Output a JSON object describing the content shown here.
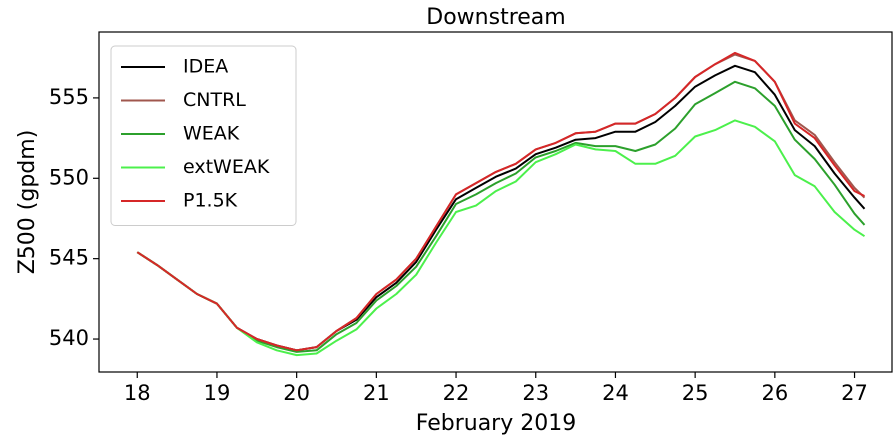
{
  "chart_data": {
    "type": "line",
    "title": "Downstream",
    "xlabel": "February 2019",
    "ylabel": "Z500 (gpdm)",
    "x": [
      18.0,
      18.25,
      18.5,
      18.75,
      19.0,
      19.25,
      19.5,
      19.75,
      20.0,
      20.25,
      20.5,
      20.75,
      21.0,
      21.25,
      21.5,
      21.75,
      22.0,
      22.25,
      22.5,
      22.75,
      23.0,
      23.25,
      23.5,
      23.75,
      24.0,
      24.25,
      24.5,
      24.75,
      25.0,
      25.25,
      25.5,
      25.75,
      26.0,
      26.25,
      26.5,
      26.75,
      27.0,
      27.125
    ],
    "series": [
      {
        "name": "IDEA",
        "color": "#000000",
        "values": [
          545.4,
          544.6,
          543.7,
          542.8,
          542.2,
          540.7,
          540.0,
          539.6,
          539.3,
          539.5,
          540.5,
          541.2,
          542.6,
          543.5,
          544.8,
          546.8,
          548.7,
          549.4,
          550.1,
          550.6,
          551.5,
          551.9,
          552.4,
          552.5,
          552.9,
          552.9,
          553.5,
          554.5,
          555.7,
          556.4,
          557.0,
          556.6,
          555.2,
          553.0,
          552.0,
          550.3,
          548.8,
          548.1
        ]
      },
      {
        "name": "CNTRL",
        "color": "#a0574e",
        "values": [
          545.4,
          544.6,
          543.7,
          542.8,
          542.2,
          540.7,
          540.0,
          539.6,
          539.3,
          539.5,
          540.5,
          541.3,
          542.8,
          543.7,
          545.0,
          547.0,
          549.0,
          549.7,
          550.4,
          550.9,
          551.8,
          552.2,
          552.8,
          552.9,
          553.4,
          553.4,
          554.0,
          555.0,
          556.3,
          557.1,
          557.7,
          557.3,
          556.0,
          553.6,
          552.7,
          551.0,
          549.4,
          548.8
        ]
      },
      {
        "name": "WEAK",
        "color": "#2ca02c",
        "values": [
          545.4,
          544.6,
          543.7,
          542.8,
          542.2,
          540.7,
          539.9,
          539.5,
          539.2,
          539.3,
          540.3,
          541.0,
          542.4,
          543.3,
          544.5,
          546.4,
          548.4,
          549.0,
          549.7,
          550.3,
          551.3,
          551.7,
          552.2,
          552.0,
          552.0,
          551.7,
          552.1,
          553.1,
          554.6,
          555.3,
          556.0,
          555.6,
          554.5,
          552.4,
          551.2,
          549.6,
          547.8,
          547.1
        ]
      },
      {
        "name": "extWEAK",
        "color": "#4cf04c",
        "values": [
          545.4,
          544.6,
          543.7,
          542.8,
          542.2,
          540.7,
          539.8,
          539.3,
          539.0,
          539.1,
          539.9,
          540.6,
          541.9,
          542.8,
          544.0,
          546.0,
          547.9,
          548.3,
          549.2,
          549.8,
          551.0,
          551.5,
          552.1,
          551.8,
          551.7,
          550.9,
          550.9,
          551.4,
          552.6,
          553.0,
          553.6,
          553.2,
          552.3,
          550.2,
          549.5,
          547.9,
          546.8,
          546.4
        ]
      },
      {
        "name": "P1.5K",
        "color": "#d62728",
        "values": [
          545.4,
          544.6,
          543.7,
          542.8,
          542.2,
          540.7,
          540.0,
          539.6,
          539.3,
          539.5,
          540.5,
          541.3,
          542.8,
          543.7,
          545.0,
          547.0,
          549.0,
          549.7,
          550.4,
          550.9,
          551.8,
          552.2,
          552.8,
          552.9,
          553.4,
          553.4,
          554.0,
          555.0,
          556.3,
          557.1,
          557.8,
          557.3,
          556.0,
          553.4,
          552.5,
          550.8,
          549.2,
          548.9
        ]
      }
    ],
    "xlim": [
      17.52,
      27.47
    ],
    "xticks": [
      18,
      19,
      20,
      21,
      22,
      23,
      24,
      25,
      26,
      27
    ],
    "ylim": [
      537.95,
      559.1
    ],
    "yticks": [
      540,
      545,
      550,
      555
    ],
    "legend": "upper left"
  }
}
